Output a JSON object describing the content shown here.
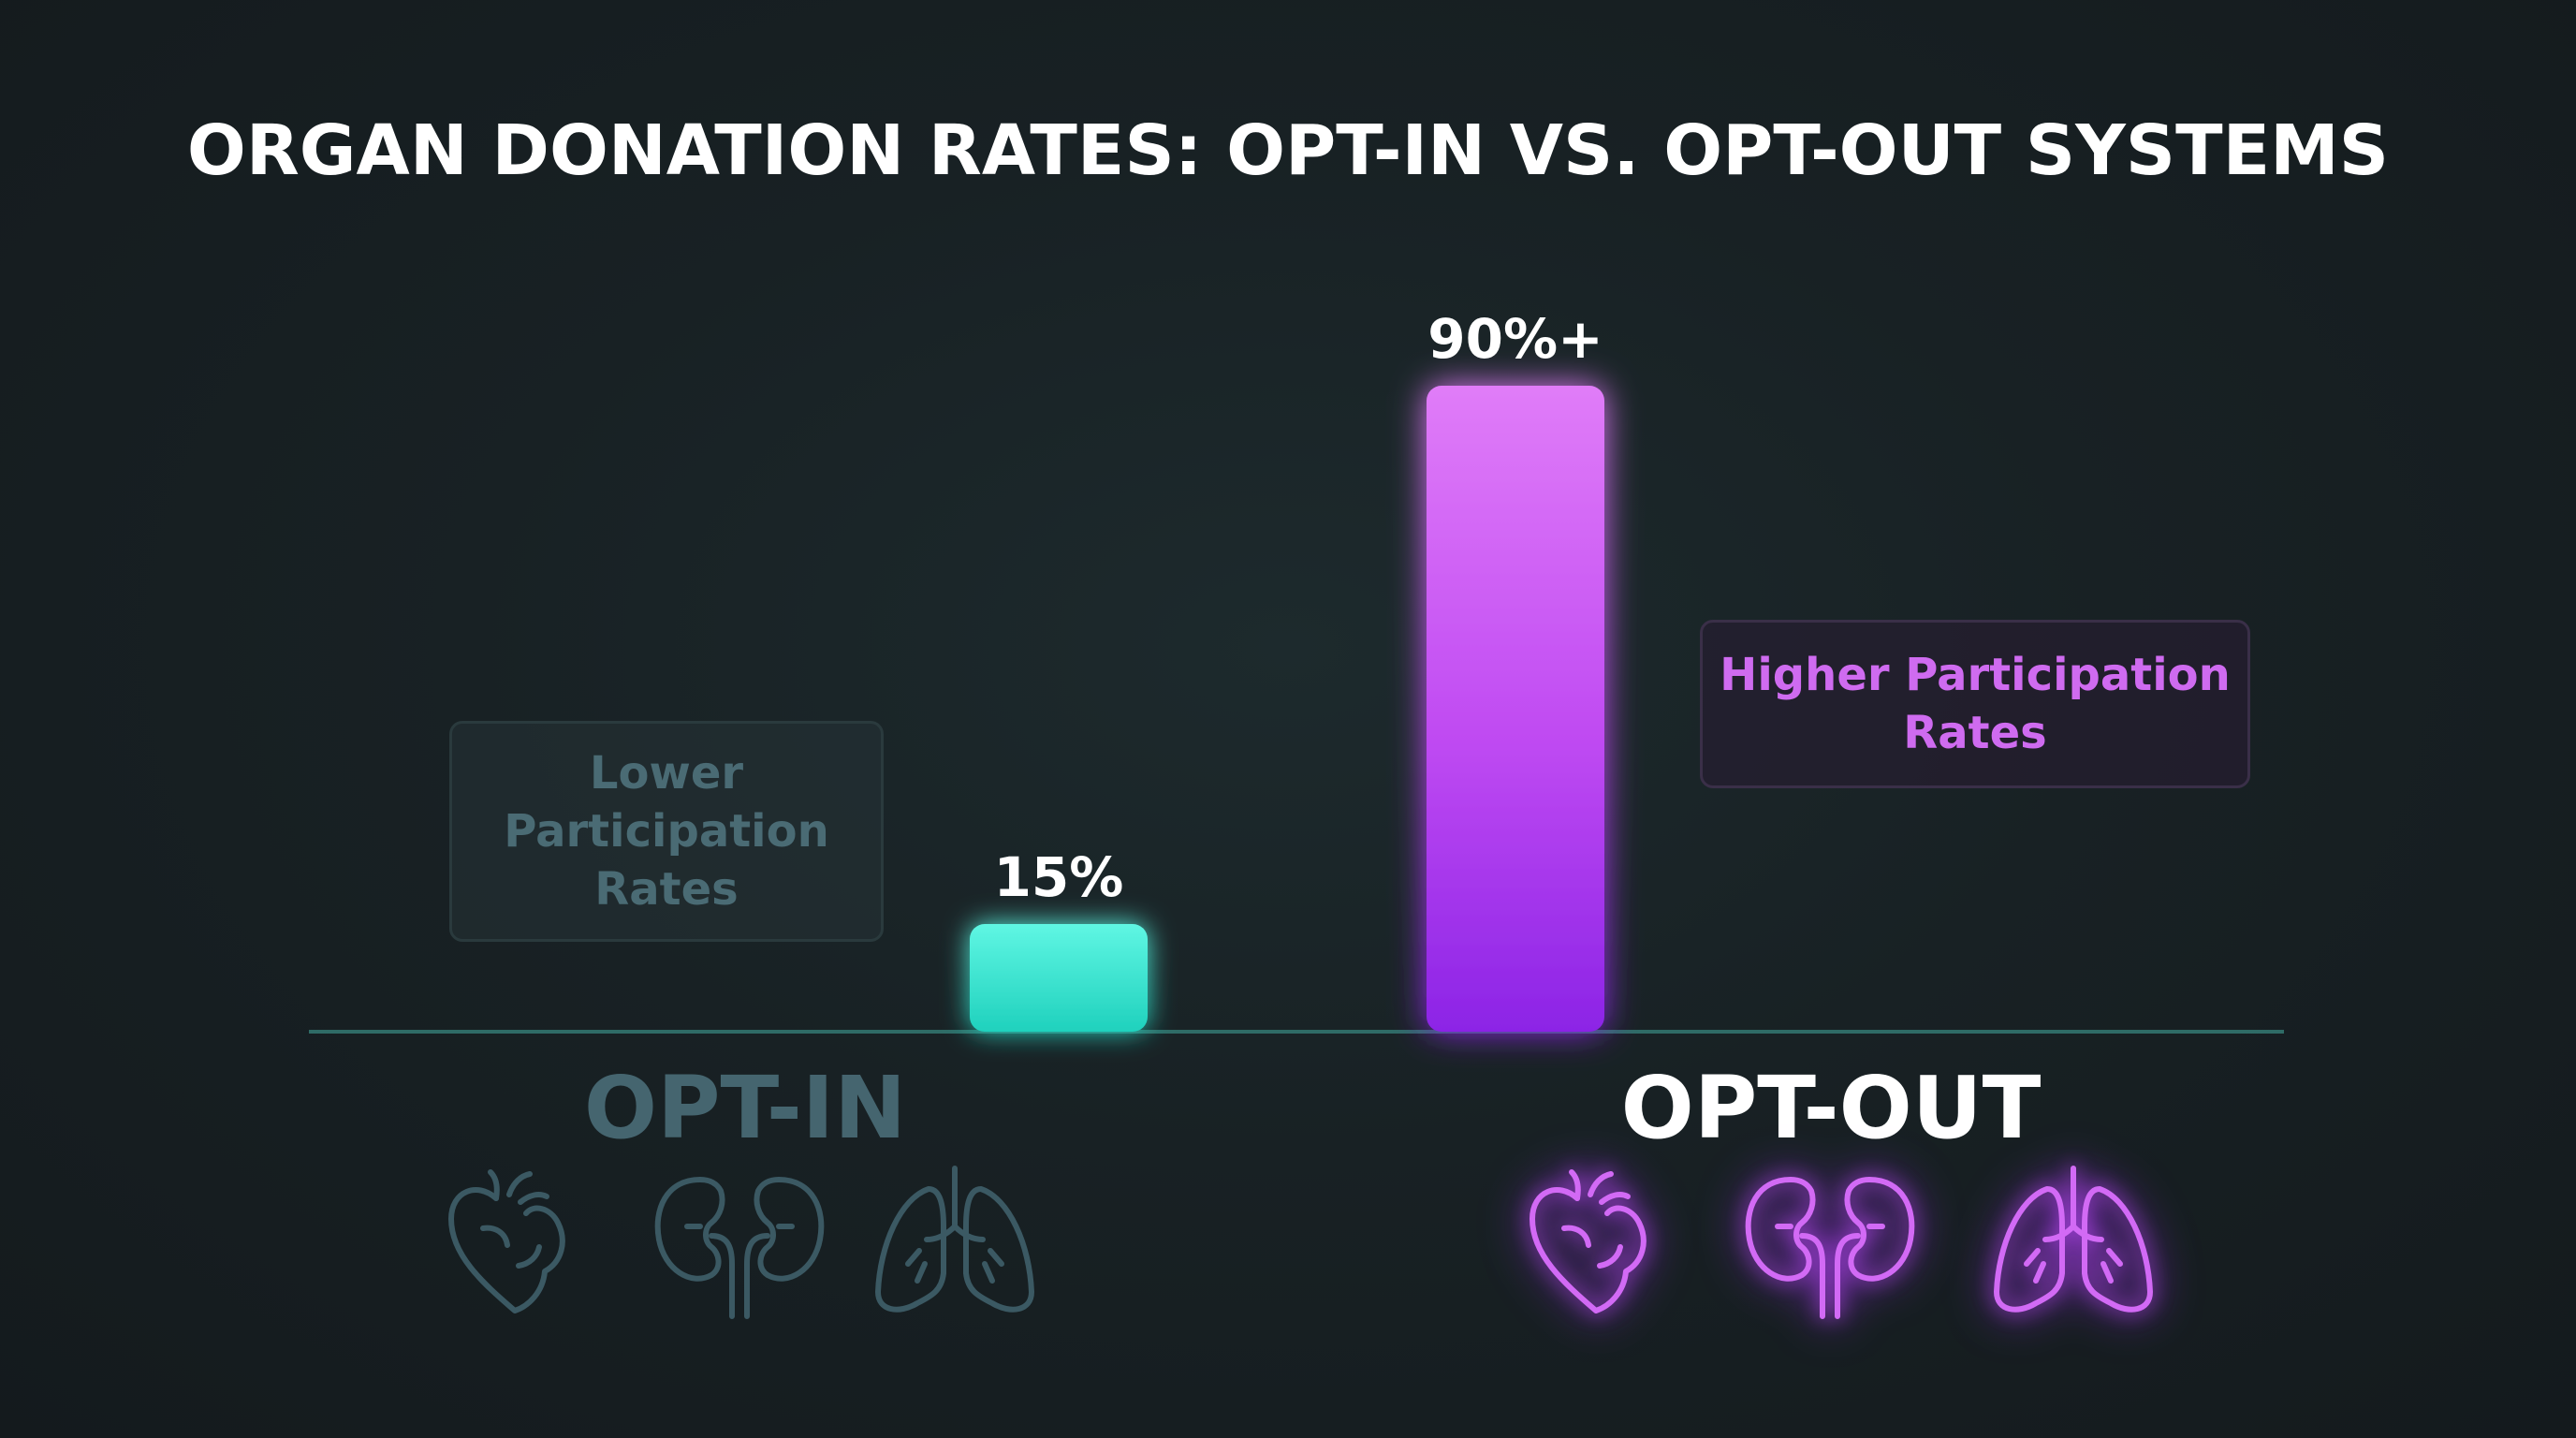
{
  "chart_data": {
    "type": "bar",
    "title": "ORGAN DONATION RATES: OPT-IN VS. OPT-OUT SYSTEMS",
    "categories": [
      "OPT-IN",
      "OPT-OUT"
    ],
    "values": [
      15,
      90
    ],
    "value_labels": [
      "15%",
      "90%+"
    ],
    "ylim": [
      0,
      100
    ],
    "grid": true,
    "colors": [
      "#3de8d4",
      "#c24df5"
    ],
    "annotations": [
      {
        "target": "OPT-IN",
        "lines": [
          "Lower",
          "Participation",
          "Rates"
        ]
      },
      {
        "target": "OPT-OUT",
        "lines": [
          "Higher Participation",
          "Rates"
        ]
      }
    ]
  },
  "icons": {
    "opt_in": [
      "heart-icon",
      "kidneys-icon",
      "lungs-icon"
    ],
    "opt_out": [
      "heart-icon",
      "kidneys-icon",
      "lungs-icon"
    ]
  },
  "colors": {
    "opt_in_bar": "#3de8d4",
    "opt_out_bar": "#c24df5",
    "muted": "#45656f",
    "accent": "#cf6bf0"
  }
}
